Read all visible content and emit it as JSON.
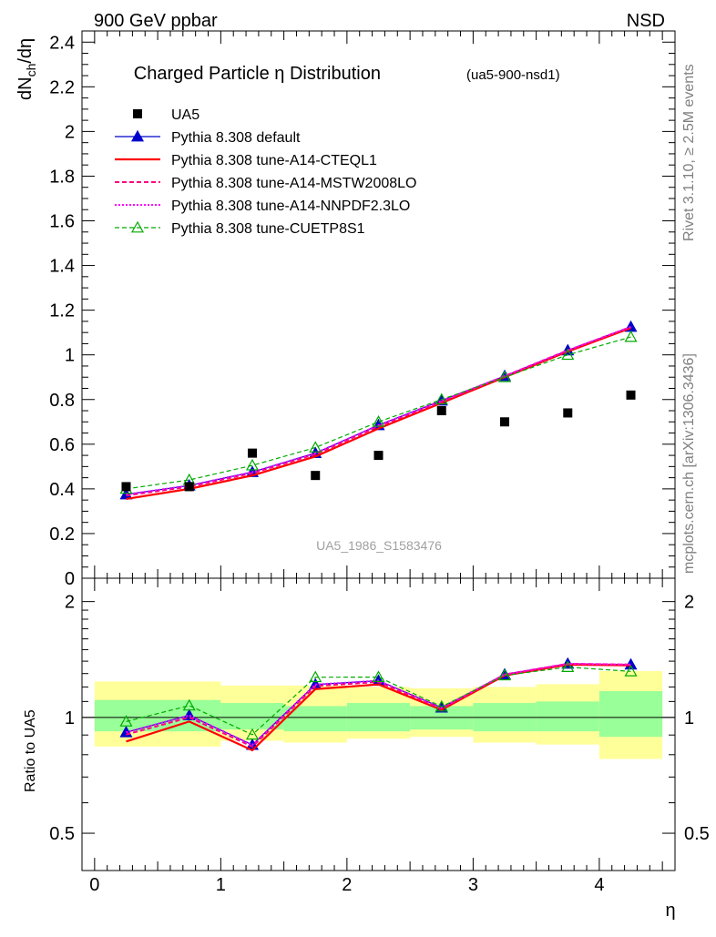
{
  "header": {
    "left": "900 GeV ppbar",
    "right": "NSD"
  },
  "side_labels": {
    "rivet": "Rivet 3.1.10, ≥ 2.5M events",
    "mcplots": "mcplots.cern.ch [arXiv:1306.3436]"
  },
  "chart_data": {
    "type": "line",
    "title": "Charged Particle η Distribution",
    "title_tag": "(ua5-900-nsd1)",
    "watermark": "UA5_1986_S1583476",
    "ylabel": "dN",
    "ylabel_sub": "ch",
    "ylabel_tail": "/dη",
    "ratio_ylabel": "Ratio to UA5",
    "xlabel": "η",
    "xlim": [
      -0.1,
      4.6
    ],
    "ylim": [
      0,
      2.45
    ],
    "ratio_ylim": [
      0.4,
      2.3
    ],
    "x_ticks": [
      "0",
      "1",
      "2",
      "3",
      "4"
    ],
    "y_ticks": [
      "0",
      "0.2",
      "0.4",
      "0.6",
      "0.8",
      "1",
      "1.2",
      "1.4",
      "1.6",
      "1.8",
      "2",
      "2.2",
      "2.4"
    ],
    "ratio_y_ticks": [
      "0.5",
      "1",
      "2"
    ],
    "x": [
      0.25,
      0.75,
      1.25,
      1.75,
      2.25,
      2.75,
      3.25,
      3.75,
      4.25
    ],
    "data": {
      "name": "UA5",
      "values": [
        0.41,
        0.41,
        0.56,
        0.46,
        0.55,
        0.75,
        0.7,
        0.74,
        0.82
      ]
    },
    "bands": {
      "edges": [
        0,
        1,
        1.5,
        2,
        2.5,
        3,
        3.5,
        4,
        4.5
      ],
      "inner_lo": [
        0.92,
        0.93,
        0.92,
        0.92,
        0.93,
        0.92,
        0.92,
        0.89
      ],
      "inner_hi": [
        1.11,
        1.09,
        1.07,
        1.09,
        1.07,
        1.09,
        1.1,
        1.17
      ],
      "outer_lo": [
        0.84,
        0.87,
        0.86,
        0.88,
        0.89,
        0.86,
        0.85,
        0.78
      ],
      "outer_hi": [
        1.24,
        1.21,
        1.21,
        1.2,
        1.19,
        1.2,
        1.22,
        1.32
      ]
    },
    "series": [
      {
        "name": "Pythia 8.308 default",
        "color": "#0000cc",
        "values": [
          0.375,
          0.415,
          0.475,
          0.56,
          0.685,
          0.795,
          0.905,
          1.02,
          1.125
        ]
      },
      {
        "name": "Pythia 8.308 tune-A14-CTEQL1",
        "color": "#ff0000",
        "values": [
          0.355,
          0.4,
          0.46,
          0.545,
          0.67,
          0.785,
          0.9,
          1.015,
          1.12
        ]
      },
      {
        "name": "Pythia 8.308 tune-A14-MSTW2008LO",
        "color": "#ff0080",
        "values": [
          0.37,
          0.41,
          0.47,
          0.555,
          0.68,
          0.79,
          0.905,
          1.02,
          1.125
        ]
      },
      {
        "name": "Pythia 8.308 tune-A14-NNPDF2.3LO",
        "color": "#ff00ff",
        "values": [
          0.375,
          0.415,
          0.475,
          0.56,
          0.685,
          0.795,
          0.905,
          1.02,
          1.125
        ]
      },
      {
        "name": "Pythia 8.308 tune-CUETP8S1",
        "color": "#00aa00",
        "values": [
          0.4,
          0.44,
          0.505,
          0.585,
          0.7,
          0.8,
          0.9,
          1.0,
          1.08
        ]
      }
    ]
  }
}
